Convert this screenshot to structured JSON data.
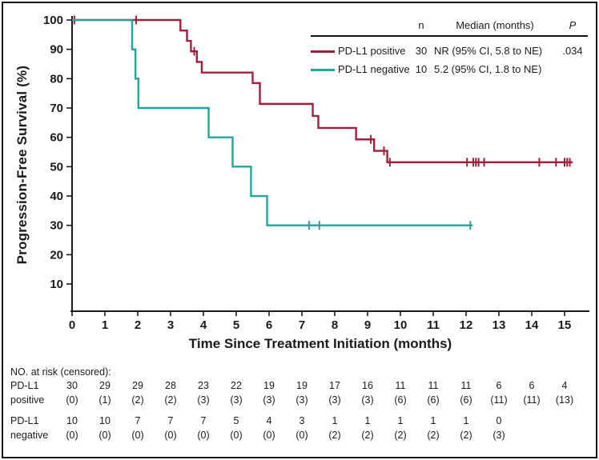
{
  "figure": {
    "y_title": "Progression-Free Survival (%)",
    "x_title": "Time Since Treatment Initiation (months)"
  },
  "legend": {
    "header": {
      "n": "n",
      "median": "Median (months)",
      "p": "P"
    },
    "rows": [
      {
        "label": "PD-L1 positive",
        "n": "30",
        "median": "NR (95% CI, 5.8 to NE)",
        "p": ".034"
      },
      {
        "label": "PD-L1 negative",
        "n": "10",
        "median": "5.2 (95% CI, 1.8 to NE)",
        "p": ""
      }
    ]
  },
  "risk_table": {
    "title": "NO. at risk (censored):",
    "groups": [
      {
        "label_line1": "PD-L1",
        "label_line2": "positive",
        "counts": [
          "30",
          "29",
          "29",
          "28",
          "23",
          "22",
          "19",
          "19",
          "17",
          "16",
          "11",
          "11",
          "11",
          "6",
          "6",
          "4"
        ],
        "censored": [
          "(0)",
          "(1)",
          "(2)",
          "(2)",
          "(3)",
          "(3)",
          "(3)",
          "(3)",
          "(3)",
          "(3)",
          "(6)",
          "(6)",
          "(6)",
          "(11)",
          "(11)",
          "(13)"
        ]
      },
      {
        "label_line1": "PD-L1",
        "label_line2": "negative",
        "counts": [
          "10",
          "10",
          "7",
          "7",
          "7",
          "5",
          "4",
          "3",
          "1",
          "1",
          "1",
          "1",
          "1",
          "0",
          "",
          ""
        ],
        "censored": [
          "(0)",
          "(0)",
          "(0)",
          "(0)",
          "(0)",
          "(0)",
          "(0)",
          "(0)",
          "(2)",
          "(2)",
          "(2)",
          "(2)",
          "(2)",
          "(3)",
          "",
          ""
        ]
      }
    ]
  },
  "chart_data": {
    "type": "line",
    "subtype": "kaplan-meier-step",
    "title": "",
    "xlabel": "Time Since Treatment Initiation (months)",
    "ylabel": "Progression-Free Survival (%)",
    "xlim": [
      0,
      15.7
    ],
    "ylim": [
      0,
      100
    ],
    "x_ticks": [
      0,
      1,
      2,
      3,
      4,
      5,
      6,
      7,
      8,
      9,
      10,
      11,
      12,
      13,
      14,
      15
    ],
    "y_ticks": [
      100,
      90,
      80,
      70,
      60,
      50,
      40,
      30,
      20,
      10
    ],
    "grid": false,
    "legend_position": "top-right",
    "axis_color": "#1a1a1a",
    "series": [
      {
        "name": "PD-L1 positive",
        "color": "#A21F3B",
        "n": 30,
        "median": "NR (95% CI, 5.8 to NE)",
        "p": ".034",
        "steps": [
          [
            0,
            100
          ],
          [
            3.3,
            96.4
          ],
          [
            3.5,
            92.9
          ],
          [
            3.62,
            89.3
          ],
          [
            3.8,
            85.7
          ],
          [
            3.95,
            82.1
          ],
          [
            5.5,
            78.5
          ],
          [
            5.72,
            71.4
          ],
          [
            7.33,
            67.3
          ],
          [
            7.5,
            63.2
          ],
          [
            8.65,
            59.3
          ],
          [
            9.2,
            55.4
          ],
          [
            9.6,
            51.5
          ]
        ],
        "end_x": 15.25,
        "censors": [
          [
            0.07,
            100
          ],
          [
            1.95,
            100
          ],
          [
            3.72,
            89.3
          ],
          [
            9.1,
            59.3
          ],
          [
            9.5,
            55.4
          ],
          [
            9.68,
            51.5
          ],
          [
            12.03,
            51.5
          ],
          [
            12.22,
            51.5
          ],
          [
            12.3,
            51.5
          ],
          [
            12.38,
            51.5
          ],
          [
            12.55,
            51.5
          ],
          [
            14.23,
            51.5
          ],
          [
            14.74,
            51.5
          ],
          [
            15.0,
            51.5
          ],
          [
            15.08,
            51.5
          ],
          [
            15.16,
            51.5
          ]
        ]
      },
      {
        "name": "PD-L1 negative",
        "color": "#23A59C",
        "n": 10,
        "median": "5.2 (95% CI, 1.8 to NE)",
        "p": "",
        "steps": [
          [
            0,
            100
          ],
          [
            1.83,
            90
          ],
          [
            1.93,
            80
          ],
          [
            2.02,
            70
          ],
          [
            4.16,
            60
          ],
          [
            4.89,
            50
          ],
          [
            5.45,
            40
          ],
          [
            5.94,
            30
          ]
        ],
        "end_x": 12.2,
        "censors": [
          [
            7.22,
            30
          ],
          [
            7.53,
            30
          ],
          [
            12.13,
            30
          ]
        ]
      }
    ]
  }
}
